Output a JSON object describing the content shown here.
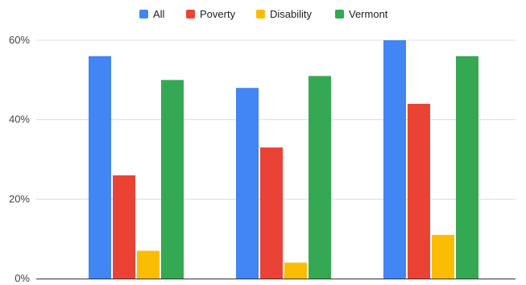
{
  "chart_data": {
    "type": "bar",
    "categories": [
      "",
      "",
      ""
    ],
    "series": [
      {
        "name": "All",
        "color": "#4285F4",
        "values": [
          56,
          48,
          60
        ]
      },
      {
        "name": "Poverty",
        "color": "#EA4335",
        "values": [
          26,
          33,
          44
        ]
      },
      {
        "name": "Disability",
        "color": "#FBBC04",
        "values": [
          7,
          4,
          11
        ]
      },
      {
        "name": "Vermont",
        "color": "#34A853",
        "values": [
          50,
          51,
          56
        ]
      }
    ],
    "ylim": [
      0,
      60
    ],
    "yticks": [
      {
        "value": 0,
        "label": "0%"
      },
      {
        "value": 20,
        "label": "20%"
      },
      {
        "value": 40,
        "label": "40%"
      },
      {
        "value": 60,
        "label": "60%"
      }
    ],
    "grid": true,
    "legend_position": "top-center",
    "title": "",
    "xlabel": "",
    "ylabel": ""
  }
}
